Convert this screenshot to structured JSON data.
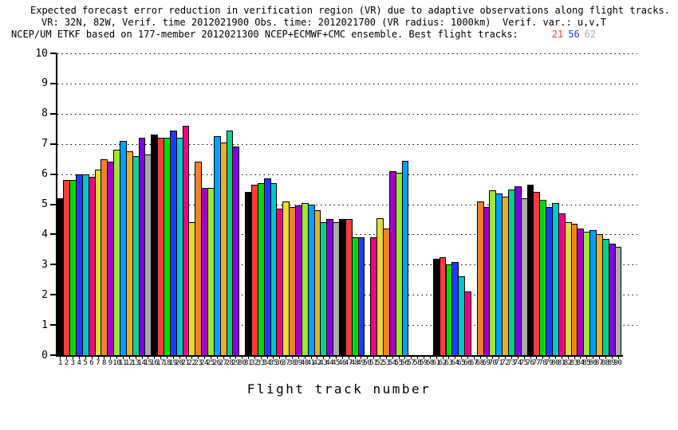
{
  "title": {
    "line1": "Expected forecast error reduction in verification region (VR) due to adaptive observations along flight tracks.",
    "line2": "VR: 32N, 82W, Verif. time 2012021900 Obs. time: 2012021700 (VR radius: 1000km)  Verif. var.: u,v,T",
    "line3_text": "NCEP/UM ETKF based on 177-member 2012021300 NCEP+ECMWF+CMC ensemble. Best flight tracks:",
    "best_tracks": [
      {
        "label": "21",
        "color": "#fa3c3c"
      },
      {
        "label": "56",
        "color": "#1e3cff"
      },
      {
        "label": "62",
        "color": "#aaaaaa"
      }
    ]
  },
  "chart_data": {
    "type": "bar",
    "title": "Expected forecast error reduction in verification region (VR) due to adaptive observations along flight tracks.",
    "xlabel": "Flight track number",
    "ylabel": "",
    "ylim": [
      0,
      10
    ],
    "yticks": [
      0,
      1,
      2,
      3,
      4,
      5,
      6,
      7,
      8,
      9,
      10
    ],
    "grid": "horizontal-dotted",
    "legend": "none",
    "x": [
      1,
      2,
      3,
      4,
      5,
      6,
      7,
      8,
      9,
      10,
      11,
      12,
      13,
      14,
      15,
      16,
      17,
      18,
      19,
      20,
      21,
      22,
      23,
      24,
      25,
      26,
      27,
      28,
      29,
      30,
      31,
      32,
      33,
      34,
      35,
      36,
      37,
      38,
      39,
      40,
      41,
      42,
      43,
      44,
      45,
      46,
      47,
      48,
      49,
      50,
      51,
      52,
      53,
      54,
      55,
      56,
      57,
      58,
      59,
      60,
      61,
      62,
      63,
      64,
      65,
      66,
      67,
      68,
      69,
      70,
      71,
      72,
      73,
      74,
      75,
      76,
      77,
      78,
      79,
      80,
      81,
      82,
      83,
      84,
      85,
      86,
      87,
      88,
      89,
      90
    ],
    "values": [
      5.2,
      5.8,
      5.8,
      6.0,
      6.0,
      5.9,
      6.15,
      6.5,
      6.4,
      6.8,
      7.1,
      6.75,
      6.6,
      7.2,
      6.65,
      7.3,
      7.2,
      7.2,
      7.45,
      7.2,
      7.6,
      4.4,
      6.4,
      5.55,
      5.55,
      7.25,
      7.05,
      7.45,
      6.9,
      null,
      5.4,
      5.65,
      5.7,
      5.85,
      5.7,
      4.85,
      5.1,
      4.9,
      4.95,
      5.05,
      5.0,
      4.8,
      4.4,
      4.5,
      4.4,
      4.5,
      4.5,
      3.9,
      3.9,
      null,
      3.9,
      4.55,
      4.2,
      6.1,
      6.05,
      6.45,
      null,
      null,
      null,
      null,
      3.2,
      3.25,
      3.0,
      3.1,
      2.6,
      2.1,
      null,
      5.1,
      4.9,
      5.45,
      5.35,
      5.25,
      5.5,
      5.6,
      5.2,
      5.65,
      5.4,
      5.15,
      4.9,
      5.05,
      4.7,
      4.4,
      4.35,
      4.2,
      4.1,
      4.15,
      4.0,
      3.85,
      3.7,
      3.6
    ],
    "missing_tracks": [
      30,
      50,
      57,
      58,
      59,
      60,
      67
    ],
    "palette_cycle15": [
      "#000000",
      "#fa3c3c",
      "#00dc00",
      "#1e3cff",
      "#00c8c8",
      "#f00082",
      "#e6dc32",
      "#f08228",
      "#a000c8",
      "#a0e632",
      "#00a0ff",
      "#e6af2d",
      "#00d28c",
      "#8200dc",
      "#aaaaaa"
    ],
    "color_rule": "bar k uses palette_cycle15[(k-1) mod 15]"
  }
}
